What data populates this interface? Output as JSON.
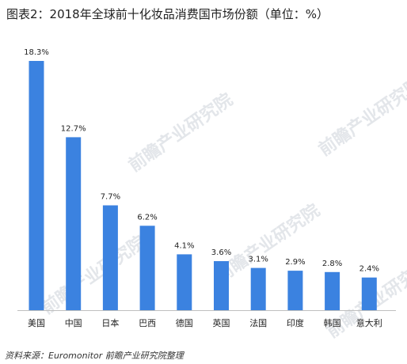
{
  "title": "图表2：2018年全球前十化妆品消费国市场份额（单位：%）",
  "source": "资料来源：Euromonitor 前瞻产业研究院整理",
  "watermark": "前瞻产业研究院",
  "colors": {
    "bar": "#3b82e0",
    "axis": "#bfbfbf",
    "label": "#222222"
  },
  "chart_data": {
    "type": "bar",
    "title": "图表2：2018年全球前十化妆品消费国市场份额（单位：%）",
    "xlabel": "",
    "ylabel": "",
    "categories": [
      "美国",
      "中国",
      "日本",
      "巴西",
      "德国",
      "英国",
      "法国",
      "印度",
      "韩国",
      "意大利"
    ],
    "values": [
      18.3,
      12.7,
      7.7,
      6.2,
      4.1,
      3.6,
      3.1,
      2.9,
      2.8,
      2.4
    ],
    "value_labels": [
      "18.3%",
      "12.7%",
      "7.7%",
      "6.2%",
      "4.1%",
      "3.6%",
      "3.1%",
      "2.9%",
      "2.8%",
      "2.4%"
    ],
    "ylim": [
      0,
      18.3
    ],
    "grid": false,
    "legend": "none"
  }
}
